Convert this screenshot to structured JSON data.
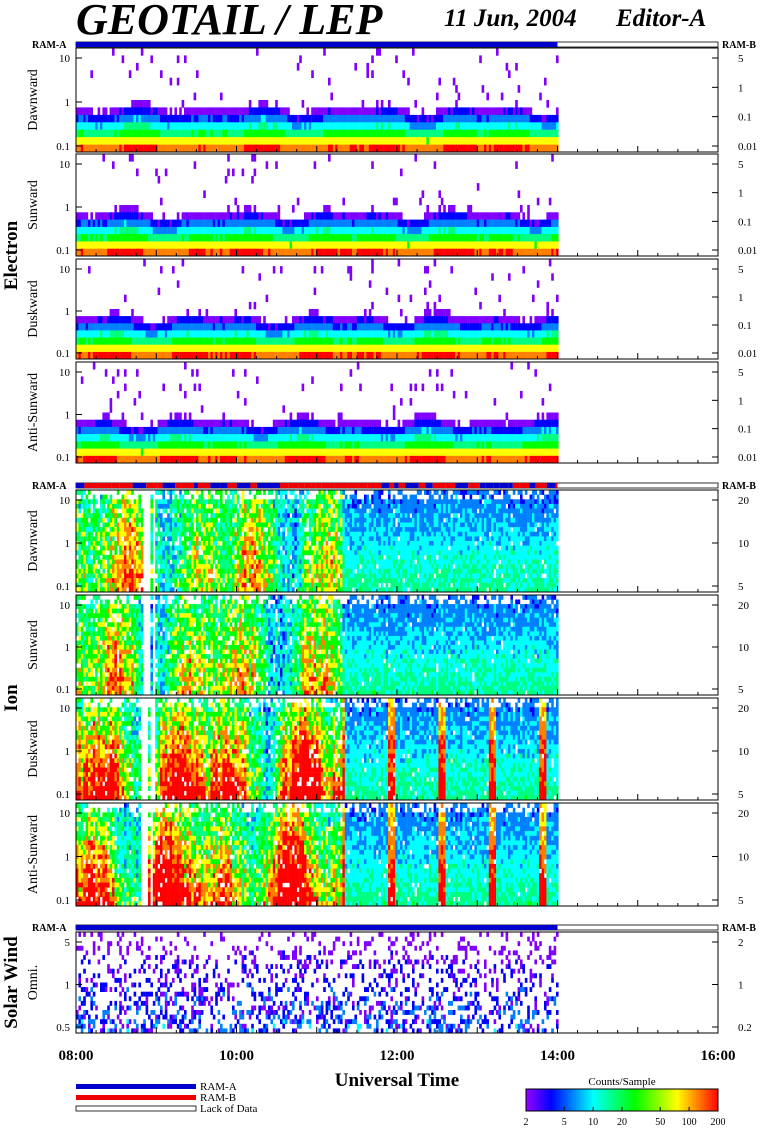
{
  "header": {
    "title": "GEOTAIL / LEP",
    "date": "11 Jun, 2004",
    "editor": "Editor-A"
  },
  "ram_labels": {
    "left": "RAM-A",
    "right": "RAM-B"
  },
  "groups": [
    {
      "name": "Electron",
      "panels": [
        0,
        1,
        2,
        3
      ]
    },
    {
      "name": "Ion",
      "panels": [
        4,
        5,
        6,
        7
      ]
    },
    {
      "name": "Solar Wind",
      "panels": [
        8
      ]
    }
  ],
  "colors": {
    "ram_a": "#0000cc",
    "ram_b": "#ee0000",
    "palette": [
      "#8000ff",
      "#0000ff",
      "#0080ff",
      "#00ffff",
      "#00ff80",
      "#00ff00",
      "#ffff00",
      "#ff8000",
      "#ff0000"
    ]
  },
  "chart_data": {
    "type": "heatmap",
    "title": "GEOTAIL / LEP",
    "xlabel": "Universal Time",
    "x_ticks": [
      "08:00",
      "10:00",
      "12:00",
      "14:00",
      "16:00"
    ],
    "x_range": [
      "08:00",
      "16:00"
    ],
    "data_end": "14:00",
    "colorbar": {
      "label": "Counts/Sample",
      "ticks": [
        2,
        5,
        10,
        20,
        50,
        100,
        200
      ],
      "range": [
        2,
        200
      ],
      "scale": "log"
    },
    "legend": [
      {
        "label": "RAM-A",
        "color": "#0000cc"
      },
      {
        "label": "RAM-B",
        "color": "#ee0000"
      },
      {
        "label": "Lack of Data",
        "color": "#ffffff"
      }
    ],
    "panels": [
      {
        "group": "Electron",
        "label": "Dawnward",
        "left_ticks": [
          "0.1",
          "1",
          "10"
        ],
        "right_ticks": [
          "5",
          "1",
          "0.1",
          "0.01"
        ],
        "mode": "electron",
        "profile": [
          0.18,
          0.26,
          0.32,
          0.38,
          0.45,
          0.6,
          0.45,
          0.26
        ],
        "ram": [
          [
            0,
            6,
            "A"
          ]
        ]
      },
      {
        "group": "Electron",
        "label": "Sunward",
        "left_ticks": [
          "0.1",
          "1",
          "10"
        ],
        "right_ticks": [
          "5",
          "1",
          "0.1",
          "0.01"
        ],
        "mode": "electron",
        "profile": [
          0.18,
          0.26,
          0.32,
          0.38,
          0.45,
          0.6,
          0.45,
          0.26
        ]
      },
      {
        "group": "Electron",
        "label": "Duskward",
        "left_ticks": [
          "0.1",
          "1",
          "10"
        ],
        "right_ticks": [
          "5",
          "1",
          "0.1",
          "0.01"
        ],
        "mode": "electron",
        "profile": [
          0.18,
          0.26,
          0.32,
          0.38,
          0.45,
          0.6,
          0.45,
          0.26
        ]
      },
      {
        "group": "Electron",
        "label": "Anti-Sunward",
        "left_ticks": [
          "0.1",
          "1",
          "10"
        ],
        "right_ticks": [
          "5",
          "1",
          "0.1",
          "0.01"
        ],
        "mode": "electron",
        "profile": [
          0.18,
          0.26,
          0.32,
          0.38,
          0.45,
          0.6,
          0.45,
          0.26
        ]
      },
      {
        "group": "Ion",
        "label": "Dawnward",
        "left_ticks": [
          "0.1",
          "1",
          "10"
        ],
        "right_ticks": [
          "20",
          "10",
          "5"
        ],
        "mode": "ion",
        "profile": [
          0.9,
          0.75,
          0.55,
          0.45,
          0.35,
          0.28,
          0.2,
          0.15
        ],
        "ram": [
          [
            0,
            6,
            "AB"
          ]
        ]
      },
      {
        "group": "Ion",
        "label": "Sunward",
        "left_ticks": [
          "0.1",
          "1",
          "10"
        ],
        "right_ticks": [
          "20",
          "10",
          "5"
        ],
        "mode": "ion",
        "profile": [
          0.9,
          0.75,
          0.55,
          0.45,
          0.35,
          0.28,
          0.2,
          0.15
        ]
      },
      {
        "group": "Ion",
        "label": "Duskward",
        "left_ticks": [
          "0.1",
          "1",
          "10"
        ],
        "right_ticks": [
          "20",
          "10",
          "5"
        ],
        "mode": "ion",
        "profile": [
          0.7,
          0.55,
          0.4,
          0.3,
          0.25,
          0.2,
          0.15,
          0.1
        ]
      },
      {
        "group": "Ion",
        "label": "Anti-Sunward",
        "left_ticks": [
          "0.1",
          "1",
          "10"
        ],
        "right_ticks": [
          "20",
          "10",
          "5"
        ],
        "mode": "ion",
        "profile": [
          0.7,
          0.55,
          0.4,
          0.3,
          0.25,
          0.2,
          0.15,
          0.1
        ]
      },
      {
        "group": "Solar Wind",
        "label": "Omni.",
        "left_ticks": [
          "0.5",
          "1",
          "5"
        ],
        "right_ticks": [
          "2",
          "1",
          "0.2"
        ],
        "mode": "sw",
        "profile": [
          0.35,
          0.3,
          0.25,
          0.2,
          0.18,
          0.15,
          0.12,
          0.1
        ],
        "ram": [
          [
            0,
            6,
            "A"
          ]
        ]
      }
    ]
  }
}
